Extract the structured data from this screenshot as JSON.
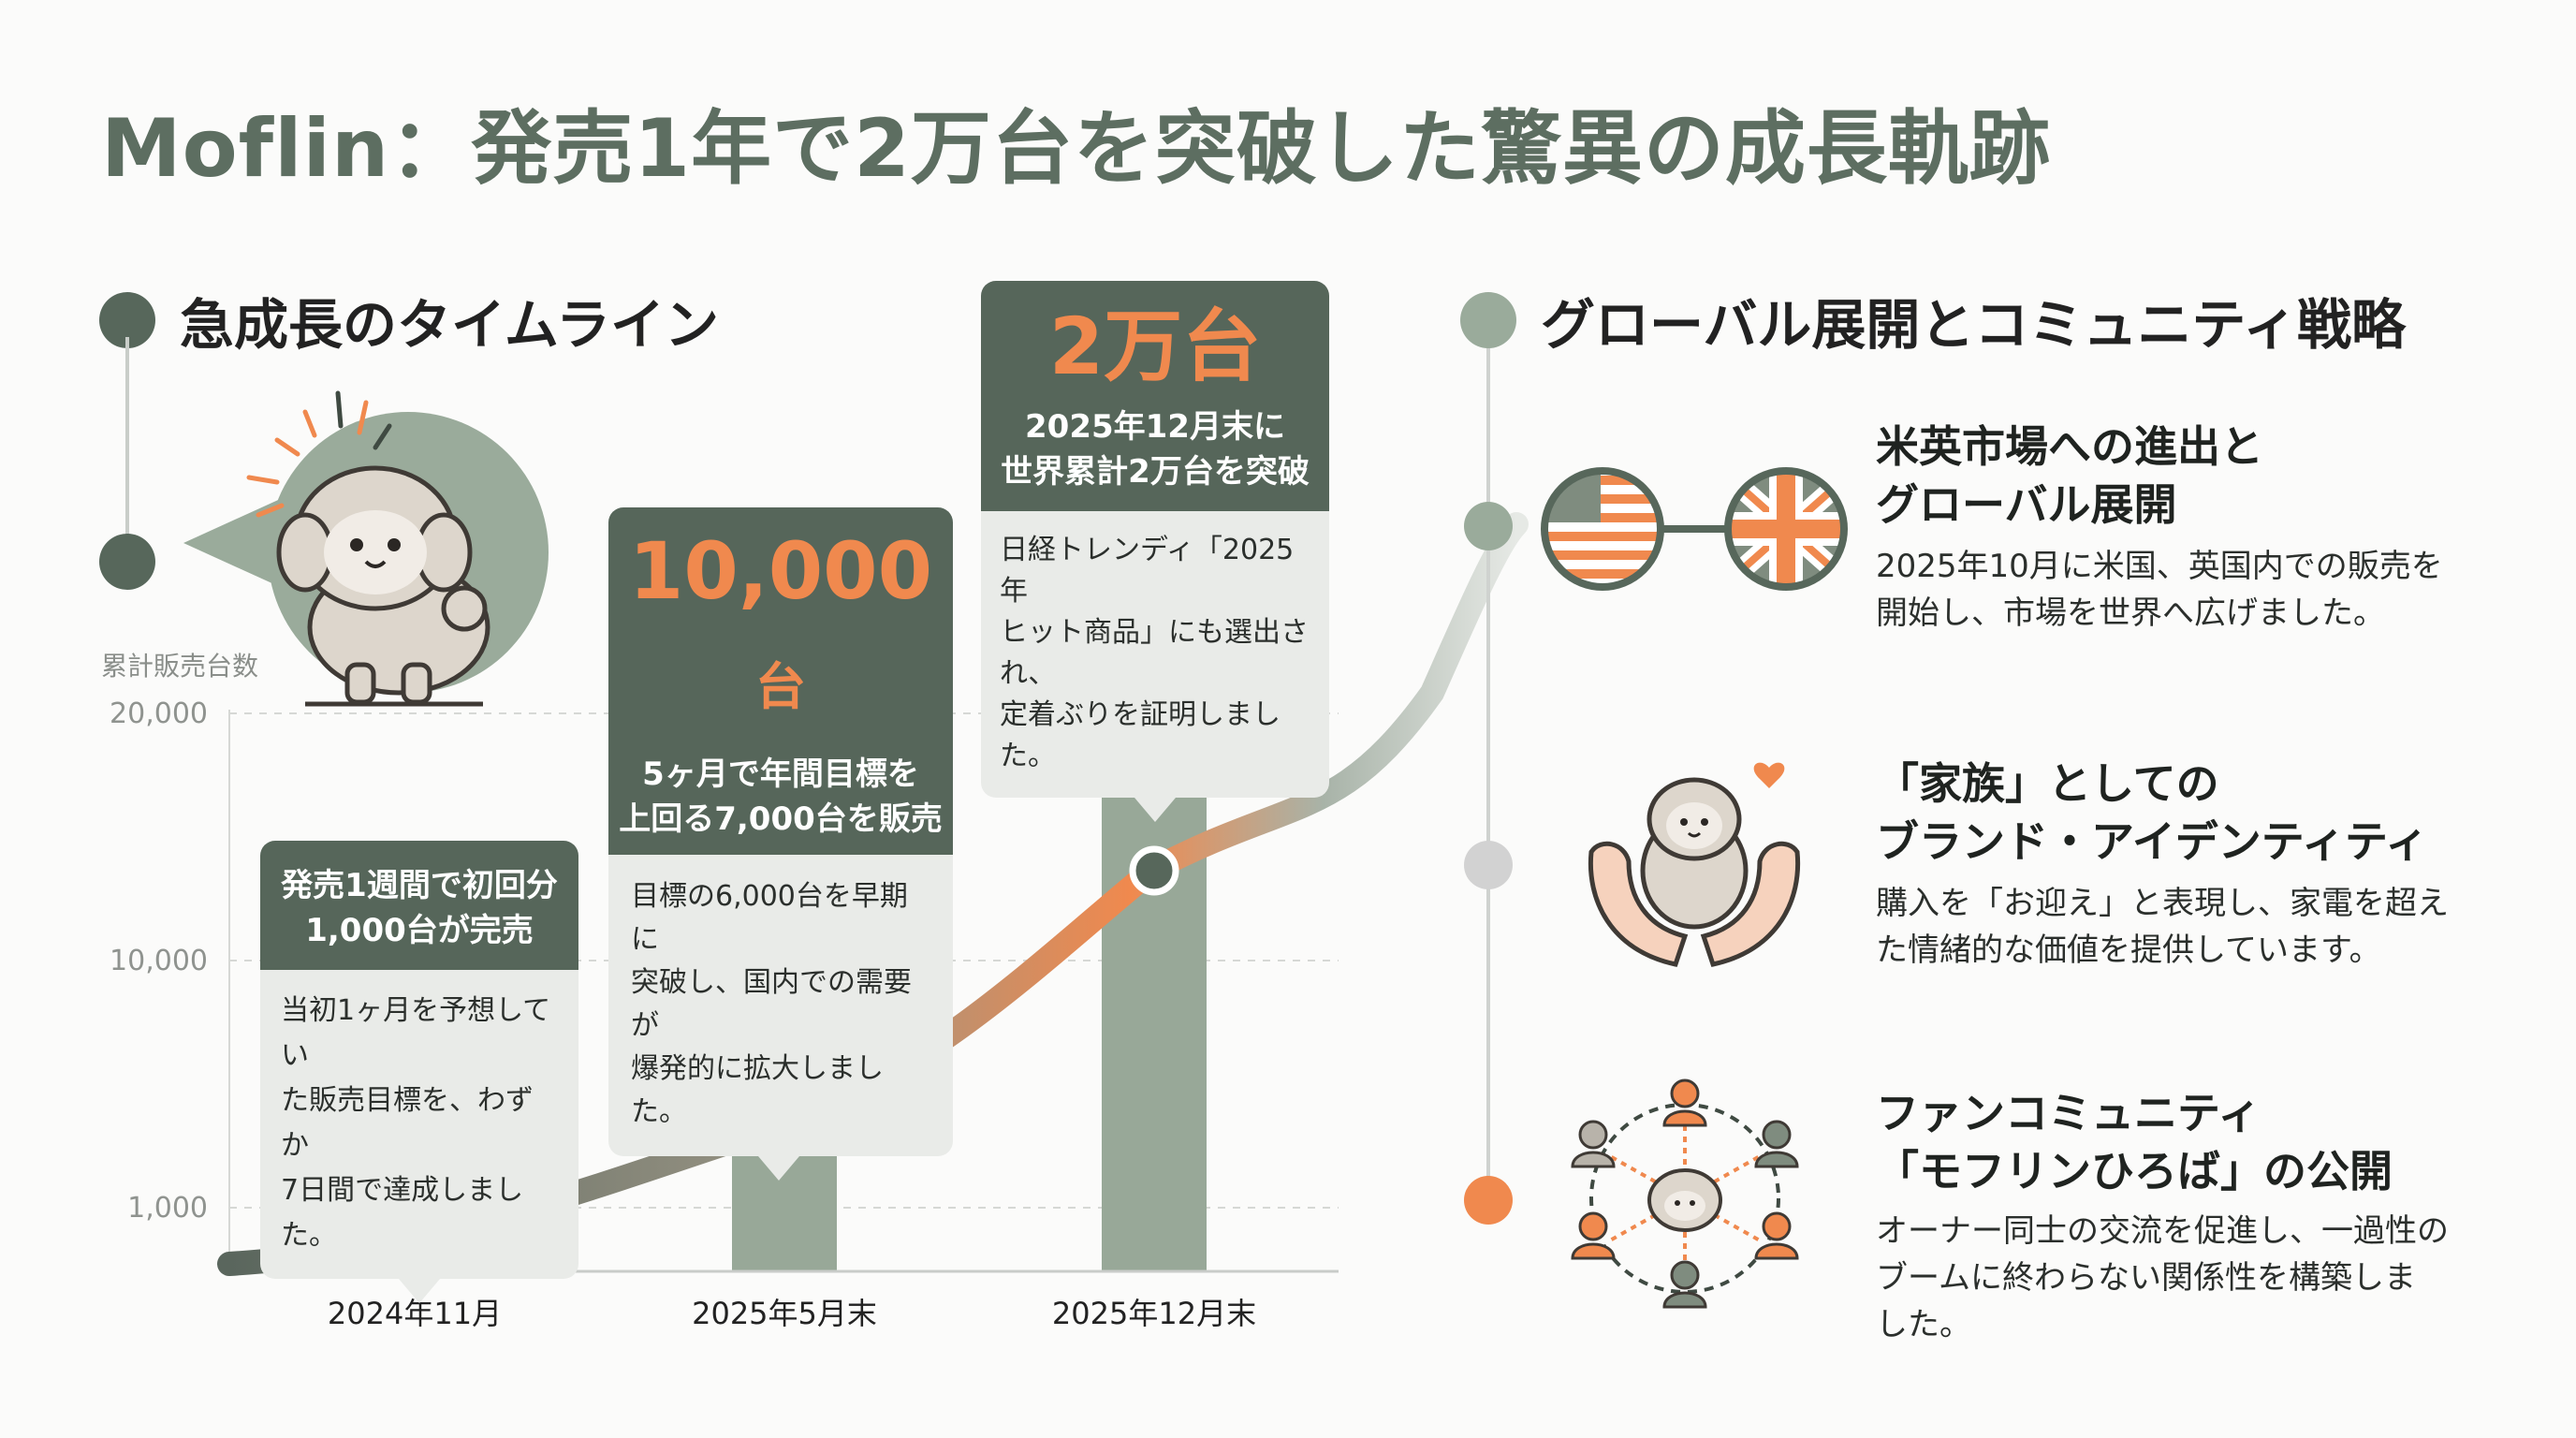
{
  "title": "Moflin：発売1年で2万台を突破した驚異の成長軌跡",
  "left_section": {
    "heading": "急成長のタイムライン"
  },
  "right_section": {
    "heading": "グローバル展開とコミュニティ戦略"
  },
  "colors": {
    "primary": "#56665a",
    "accent": "#f0894e",
    "bar": "#98a898",
    "light": "#e9ebe8"
  },
  "chart_data": {
    "type": "bar",
    "ylabel": "累計販売台数",
    "y_ticks": [
      "20,000",
      "10,000",
      "1,000"
    ],
    "categories": [
      "2024年11月",
      "2025年5月末",
      "2025年12月末"
    ],
    "values": [
      1000,
      10000,
      20000
    ],
    "line_points": [
      1000,
      7000,
      20000
    ],
    "grid": true
  },
  "callouts": [
    {
      "header_lines": [
        "発売1週間で初回分",
        "1,000台が完売"
      ],
      "body_lines": [
        "当初1ヶ月を予想してい",
        "た販売目標を、わずか",
        "7日間で達成しました。"
      ]
    },
    {
      "big": "10,000",
      "big_unit": "台",
      "header_lines": [
        "5ヶ月で年間目標を",
        "上回る7,000台を販売"
      ],
      "body_lines": [
        "目標の6,000台を早期に",
        "突破し、国内での需要が",
        "爆発的に拡大しました。"
      ]
    },
    {
      "big": "2万台",
      "header_lines": [
        "2025年12月末に",
        "世界累計2万台を突破"
      ],
      "body_lines": [
        "日経トレンディ「2025年",
        "ヒット商品」にも選出され、",
        "定着ぶりを証明しました。"
      ]
    }
  ],
  "items": [
    {
      "icon": "flags-icon",
      "title_lines": [
        "米英市場への進出と",
        "グローバル展開"
      ],
      "body_lines": [
        "2025年10月に米国、英国内での販売を",
        "開始し、市場を世界へ広げました。"
      ]
    },
    {
      "icon": "hands-sheep-icon",
      "title_lines": [
        "「家族」としての",
        "ブランド・アイデンティティ"
      ],
      "body_lines": [
        "購入を「お迎え」と表現し、家電を超え",
        "た情緒的な価値を提供しています。"
      ]
    },
    {
      "icon": "community-icon",
      "title_lines": [
        "ファンコミュニティ",
        "「モフリンひろば」の公開"
      ],
      "body_lines": [
        "オーナー同士の交流を促進し、一過性の",
        "ブームに終わらない関係性を構築しま",
        "した。"
      ]
    }
  ]
}
